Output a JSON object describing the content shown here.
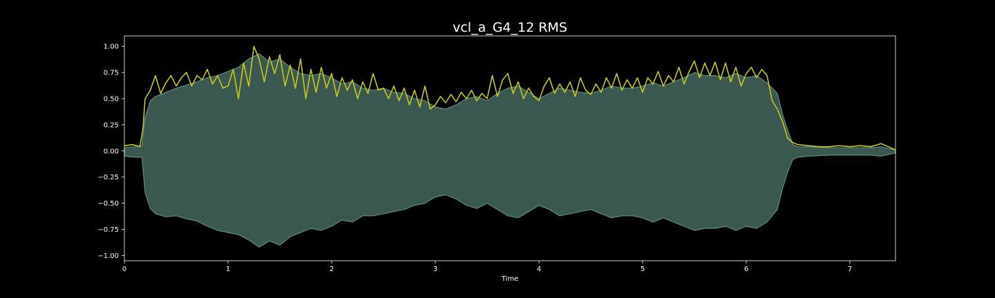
{
  "chart_data": {
    "type": "line",
    "title": "vcl_a_G4_12 RMS",
    "xlabel": "Time",
    "ylabel": "",
    "xlim": [
      0,
      7.44
    ],
    "ylim": [
      -1.05,
      1.1
    ],
    "xticks": [
      0,
      1,
      2,
      3,
      4,
      5,
      6,
      7
    ],
    "xtick_labels": [
      "0",
      "1",
      "2",
      "3",
      "4",
      "5",
      "6",
      "7"
    ],
    "yticks": [
      1.0,
      0.75,
      0.5,
      0.25,
      0.0,
      -0.25,
      -0.5,
      -0.75,
      -1.0
    ],
    "ytick_labels": [
      "1.00",
      "0.75",
      "0.50",
      "0.25",
      "0.00",
      "−0.25",
      "−0.50",
      "−0.75",
      "−1.00"
    ],
    "grid": false,
    "series": [
      {
        "kind": "waveform-envelope",
        "color": "#5a8f82",
        "fill_color": "#3b5850",
        "x": [
          0,
          0.1,
          0.17,
          0.2,
          0.25,
          0.3,
          0.4,
          0.5,
          0.6,
          0.7,
          0.8,
          0.9,
          1.0,
          1.1,
          1.2,
          1.3,
          1.4,
          1.5,
          1.6,
          1.7,
          1.8,
          1.9,
          2.0,
          2.1,
          2.2,
          2.3,
          2.4,
          2.5,
          2.6,
          2.7,
          2.8,
          2.9,
          3.0,
          3.1,
          3.2,
          3.3,
          3.4,
          3.5,
          3.6,
          3.7,
          3.8,
          3.9,
          4.0,
          4.1,
          4.2,
          4.3,
          4.4,
          4.5,
          4.6,
          4.7,
          4.8,
          4.9,
          5.0,
          5.1,
          5.2,
          5.3,
          5.4,
          5.5,
          5.6,
          5.7,
          5.8,
          5.9,
          6.0,
          6.1,
          6.2,
          6.3,
          6.35,
          6.4,
          6.45,
          6.5,
          6.6,
          6.8,
          7.0,
          7.2,
          7.3,
          7.44
        ],
        "upper": [
          0.03,
          0.04,
          0.05,
          0.32,
          0.48,
          0.52,
          0.56,
          0.6,
          0.63,
          0.66,
          0.7,
          0.72,
          0.76,
          0.8,
          0.88,
          0.93,
          0.85,
          0.88,
          0.8,
          0.74,
          0.72,
          0.74,
          0.7,
          0.64,
          0.66,
          0.6,
          0.58,
          0.6,
          0.56,
          0.55,
          0.5,
          0.48,
          0.42,
          0.4,
          0.44,
          0.5,
          0.52,
          0.48,
          0.55,
          0.6,
          0.62,
          0.56,
          0.5,
          0.55,
          0.6,
          0.58,
          0.56,
          0.55,
          0.58,
          0.62,
          0.6,
          0.6,
          0.62,
          0.65,
          0.62,
          0.66,
          0.7,
          0.75,
          0.72,
          0.72,
          0.7,
          0.74,
          0.7,
          0.72,
          0.65,
          0.55,
          0.35,
          0.2,
          0.06,
          0.04,
          0.04,
          0.03,
          0.03,
          0.03,
          0.04,
          0.01
        ],
        "lower": [
          -0.05,
          -0.06,
          -0.06,
          -0.4,
          -0.55,
          -0.6,
          -0.63,
          -0.62,
          -0.65,
          -0.67,
          -0.72,
          -0.76,
          -0.78,
          -0.8,
          -0.85,
          -0.92,
          -0.86,
          -0.9,
          -0.82,
          -0.78,
          -0.74,
          -0.76,
          -0.72,
          -0.66,
          -0.68,
          -0.62,
          -0.62,
          -0.6,
          -0.58,
          -0.56,
          -0.52,
          -0.5,
          -0.44,
          -0.42,
          -0.46,
          -0.52,
          -0.55,
          -0.5,
          -0.56,
          -0.62,
          -0.64,
          -0.58,
          -0.52,
          -0.56,
          -0.62,
          -0.6,
          -0.58,
          -0.56,
          -0.6,
          -0.64,
          -0.62,
          -0.62,
          -0.64,
          -0.68,
          -0.64,
          -0.68,
          -0.72,
          -0.76,
          -0.74,
          -0.74,
          -0.72,
          -0.76,
          -0.72,
          -0.74,
          -0.68,
          -0.56,
          -0.36,
          -0.2,
          -0.08,
          -0.06,
          -0.05,
          -0.04,
          -0.04,
          -0.04,
          -0.05,
          -0.02
        ]
      },
      {
        "kind": "rms-line",
        "color": "#c8c820",
        "x": [
          0,
          0.08,
          0.15,
          0.18,
          0.2,
          0.25,
          0.3,
          0.35,
          0.4,
          0.45,
          0.5,
          0.55,
          0.6,
          0.65,
          0.7,
          0.75,
          0.8,
          0.85,
          0.9,
          0.95,
          1.0,
          1.05,
          1.1,
          1.15,
          1.2,
          1.25,
          1.3,
          1.35,
          1.4,
          1.45,
          1.5,
          1.55,
          1.6,
          1.65,
          1.7,
          1.75,
          1.8,
          1.85,
          1.9,
          1.95,
          2.0,
          2.05,
          2.1,
          2.15,
          2.2,
          2.25,
          2.3,
          2.35,
          2.4,
          2.45,
          2.5,
          2.55,
          2.6,
          2.65,
          2.7,
          2.75,
          2.8,
          2.85,
          2.9,
          2.95,
          3.0,
          3.05,
          3.1,
          3.15,
          3.2,
          3.25,
          3.3,
          3.35,
          3.4,
          3.45,
          3.5,
          3.55,
          3.6,
          3.65,
          3.7,
          3.75,
          3.8,
          3.85,
          3.9,
          3.95,
          4.0,
          4.05,
          4.1,
          4.15,
          4.2,
          4.25,
          4.3,
          4.35,
          4.4,
          4.45,
          4.5,
          4.55,
          4.6,
          4.65,
          4.7,
          4.75,
          4.8,
          4.85,
          4.9,
          4.95,
          5.0,
          5.05,
          5.1,
          5.15,
          5.2,
          5.25,
          5.3,
          5.35,
          5.4,
          5.45,
          5.5,
          5.55,
          5.6,
          5.65,
          5.7,
          5.75,
          5.8,
          5.85,
          5.9,
          5.95,
          6.0,
          6.05,
          6.1,
          6.15,
          6.2,
          6.25,
          6.3,
          6.35,
          6.4,
          6.45,
          6.5,
          6.6,
          6.7,
          6.8,
          6.9,
          7.0,
          7.1,
          7.2,
          7.3,
          7.35,
          7.44
        ],
        "y": [
          0.05,
          0.06,
          0.04,
          0.22,
          0.5,
          0.58,
          0.72,
          0.55,
          0.65,
          0.72,
          0.62,
          0.7,
          0.75,
          0.62,
          0.72,
          0.68,
          0.78,
          0.64,
          0.72,
          0.6,
          0.62,
          0.78,
          0.5,
          0.84,
          0.62,
          1.0,
          0.88,
          0.66,
          0.9,
          0.74,
          0.92,
          0.62,
          0.82,
          0.6,
          0.88,
          0.5,
          0.78,
          0.56,
          0.8,
          0.6,
          0.74,
          0.52,
          0.7,
          0.58,
          0.68,
          0.5,
          0.66,
          0.55,
          0.74,
          0.58,
          0.6,
          0.5,
          0.62,
          0.48,
          0.6,
          0.44,
          0.58,
          0.42,
          0.62,
          0.4,
          0.44,
          0.52,
          0.46,
          0.54,
          0.47,
          0.56,
          0.5,
          0.58,
          0.48,
          0.55,
          0.5,
          0.72,
          0.52,
          0.68,
          0.74,
          0.55,
          0.66,
          0.5,
          0.6,
          0.52,
          0.48,
          0.62,
          0.7,
          0.55,
          0.64,
          0.56,
          0.66,
          0.52,
          0.7,
          0.58,
          0.54,
          0.64,
          0.56,
          0.7,
          0.6,
          0.74,
          0.58,
          0.68,
          0.6,
          0.7,
          0.56,
          0.7,
          0.64,
          0.76,
          0.62,
          0.72,
          0.66,
          0.8,
          0.64,
          0.76,
          0.86,
          0.7,
          0.84,
          0.72,
          0.85,
          0.68,
          0.84,
          0.66,
          0.8,
          0.62,
          0.74,
          0.8,
          0.7,
          0.78,
          0.72,
          0.48,
          0.4,
          0.28,
          0.12,
          0.08,
          0.06,
          0.05,
          0.04,
          0.04,
          0.05,
          0.04,
          0.05,
          0.04,
          0.07,
          0.05,
          0.01
        ]
      }
    ]
  }
}
